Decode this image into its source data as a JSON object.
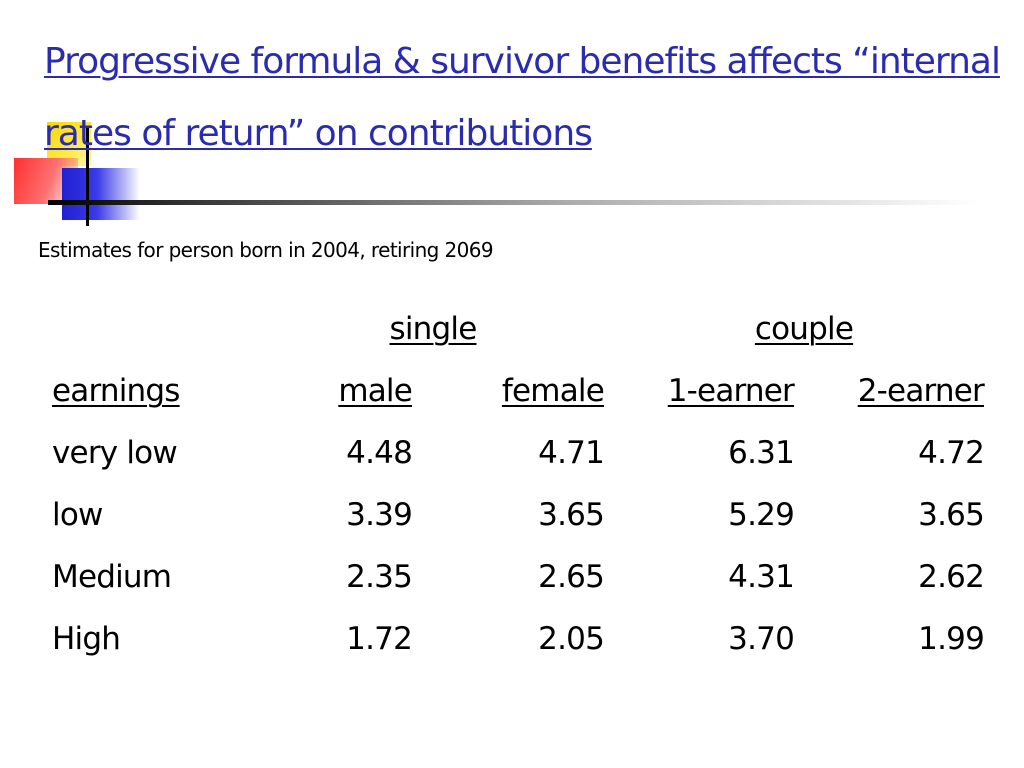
{
  "slide": {
    "title": "Progressive formula & survivor benefits affects “internal rates of return” on contributions",
    "subtitle": "Estimates for person born in 2004, retiring 2069"
  },
  "table": {
    "group_headers": {
      "single": "single",
      "couple": "couple"
    },
    "column_headers": {
      "earnings": "earnings",
      "male": "male",
      "female": "female",
      "one_earner": "1-earner",
      "two_earner": "2-earner"
    },
    "rows": [
      {
        "label": "very low",
        "male": "4.48",
        "female": "4.71",
        "one_earner": "6.31",
        "two_earner": "4.72"
      },
      {
        "label": "low",
        "male": "3.39",
        "female": "3.65",
        "one_earner": "5.29",
        "two_earner": "3.65"
      },
      {
        "label": "Medium",
        "male": "2.35",
        "female": "2.65",
        "one_earner": "4.31",
        "two_earner": "2.62"
      },
      {
        "label": "High",
        "male": "1.72",
        "female": "2.05",
        "one_earner": "3.70",
        "two_earner": "1.99"
      }
    ]
  },
  "colors": {
    "title": "#2b2bb0",
    "accent_yellow": "#f6d800",
    "accent_red": "#ff3030",
    "accent_blue": "#2020d0"
  }
}
